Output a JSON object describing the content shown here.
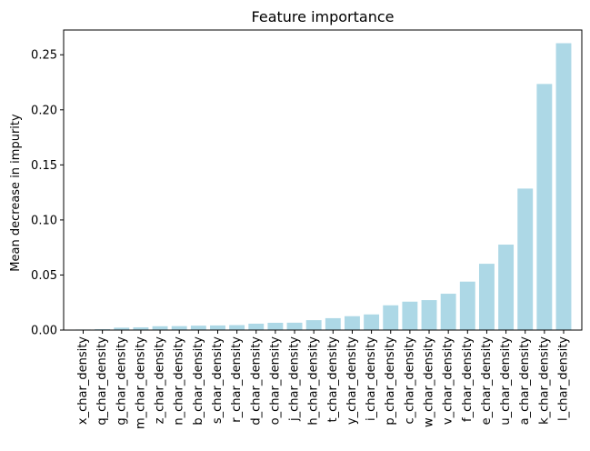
{
  "chart_data": {
    "type": "bar",
    "title": "Feature importance",
    "xlabel": "",
    "ylabel": "Mean decrease in impurity",
    "categories": [
      "x_char_density",
      "q_char_density",
      "g_char_density",
      "m_char_density",
      "z_char_density",
      "n_char_density",
      "b_char_density",
      "s_char_density",
      "r_char_density",
      "d_char_density",
      "o_char_density",
      "j_char_density",
      "h_char_density",
      "t_char_density",
      "y_char_density",
      "i_char_density",
      "p_char_density",
      "c_char_density",
      "w_char_density",
      "v_char_density",
      "f_char_density",
      "e_char_density",
      "u_char_density",
      "a_char_density",
      "k_char_density",
      "l_char_density"
    ],
    "values": [
      0.0005,
      0.0008,
      0.0022,
      0.0025,
      0.0035,
      0.0036,
      0.004,
      0.0042,
      0.0045,
      0.0058,
      0.0066,
      0.0067,
      0.009,
      0.0108,
      0.0126,
      0.0142,
      0.0225,
      0.0258,
      0.0272,
      0.033,
      0.044,
      0.0602,
      0.0776,
      0.1285,
      0.2235,
      0.2605
    ],
    "ylim": [
      0,
      0.2725
    ],
    "yticks": [
      0.0,
      0.05,
      0.1,
      0.15,
      0.2,
      0.25
    ],
    "ytick_labels": [
      "0.00",
      "0.05",
      "0.10",
      "0.15",
      "0.20",
      "0.25"
    ],
    "bar_color": "#add8e6",
    "grid": false,
    "legend": "none"
  }
}
